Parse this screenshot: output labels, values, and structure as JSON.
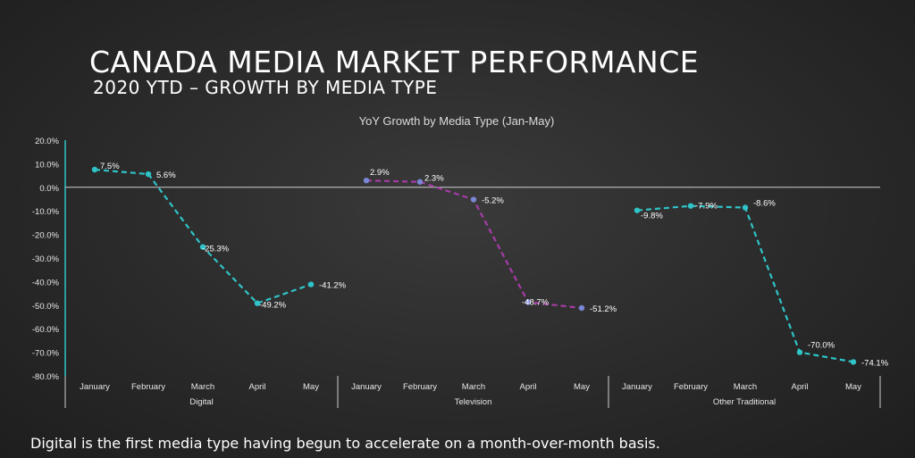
{
  "header": {
    "title": "CANADA MEDIA MARKET PERFORMANCE",
    "subtitle": "2020 YTD – GROWTH BY MEDIA TYPE"
  },
  "footnote": "Digital is the first media type having begun to accelerate on a month-over-month basis.",
  "chart_data": {
    "type": "line",
    "title": "YoY Growth by Media Type (Jan-May)",
    "ylim": [
      -80,
      20
    ],
    "yticks": [
      "20.0%",
      "10.0%",
      "0.0%",
      "-10.0%",
      "-20.0%",
      "-30.0%",
      "-40.0%",
      "-50.0%",
      "-60.0%",
      "-70.0%",
      "-80.0%"
    ],
    "ytick_values": [
      20,
      10,
      0,
      -10,
      -20,
      -30,
      -40,
      -50,
      -60,
      -70,
      -80
    ],
    "grid": false,
    "groups": [
      {
        "name": "Digital",
        "color": "#2ec4c8",
        "categories": [
          "January",
          "February",
          "March",
          "April",
          "May"
        ],
        "values": [
          7.5,
          5.6,
          -25.3,
          -49.2,
          -41.2
        ],
        "labels": [
          "7.5%",
          "5.6%",
          "-25.3%",
          "-49.2%",
          "-41.2%"
        ]
      },
      {
        "name": "Television",
        "color": "#a63ba8",
        "marker_color": "#7a86d6",
        "categories": [
          "January",
          "February",
          "March",
          "April",
          "May"
        ],
        "values": [
          2.9,
          2.3,
          -5.2,
          -48.7,
          -51.2
        ],
        "labels": [
          "2.9%",
          "2.3%",
          "-5.2%",
          "-48.7%",
          "-51.2%"
        ]
      },
      {
        "name": "Other Traditional",
        "color": "#2ec4c8",
        "categories": [
          "January",
          "February",
          "March",
          "April",
          "May"
        ],
        "values": [
          -9.8,
          -7.9,
          -8.6,
          -70.0,
          -74.1
        ],
        "labels": [
          "-9.8%",
          "-7.9%",
          "-8.6%",
          "-70.0%",
          "-74.1%"
        ]
      }
    ]
  }
}
